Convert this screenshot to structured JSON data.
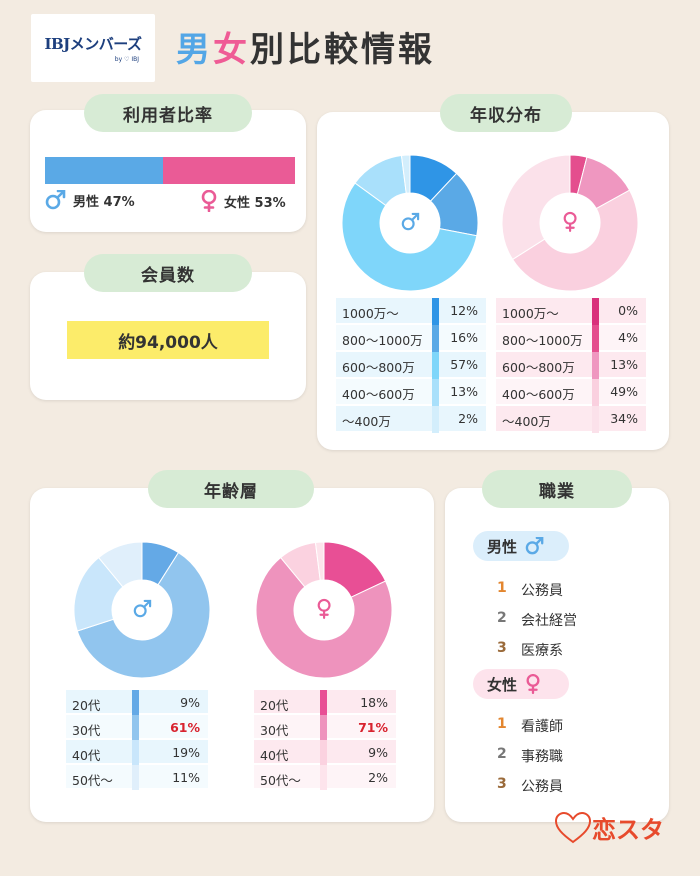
{
  "logo": {
    "main": "IBJメンバーズ",
    "sub": "by ♡ IBJ"
  },
  "title": {
    "part1": "男",
    "part2": "女",
    "part3": "別比較情報"
  },
  "ratio": {
    "heading": "利用者比率",
    "male_label": "男性 47%",
    "male_value": 47,
    "female_label": "女性 53%",
    "female_value": 53
  },
  "members": {
    "heading": "会員数",
    "value": "約94,000人"
  },
  "income": {
    "heading": "年収分布",
    "male": [
      {
        "label": "1000万〜",
        "value": "12%",
        "pct": 12,
        "color": "#2f95e6"
      },
      {
        "label": "800〜1000万",
        "value": "16%",
        "pct": 16,
        "color": "#5aa9e6"
      },
      {
        "label": "600〜800万",
        "value": "57%",
        "pct": 57,
        "color": "#7fd6fa"
      },
      {
        "label": "400〜600万",
        "value": "13%",
        "pct": 13,
        "color": "#a9e0fb"
      },
      {
        "label": "〜400万",
        "value": "2%",
        "pct": 2,
        "color": "#d3eefc"
      }
    ],
    "female": [
      {
        "label": "1000万〜",
        "value": "0%",
        "pct": 0,
        "color": "#d9317c"
      },
      {
        "label": "800〜1000万",
        "value": "4%",
        "pct": 4,
        "color": "#e44e8e"
      },
      {
        "label": "600〜800万",
        "value": "13%",
        "pct": 13,
        "color": "#ef97c0"
      },
      {
        "label": "400〜600万",
        "value": "49%",
        "pct": 49,
        "color": "#fad0df"
      },
      {
        "label": "〜400万",
        "value": "34%",
        "pct": 34,
        "color": "#fbe1ea"
      }
    ]
  },
  "age": {
    "heading": "年齢層",
    "male": [
      {
        "label": "20代",
        "value": "9%",
        "pct": 9,
        "color": "#64a9e6"
      },
      {
        "label": "30代",
        "value": "61%",
        "pct": 61,
        "color": "#91c5ee",
        "highlight": true
      },
      {
        "label": "40代",
        "value": "19%",
        "pct": 19,
        "color": "#c9e6fb"
      },
      {
        "label": "50代〜",
        "value": "11%",
        "pct": 11,
        "color": "#e0effb"
      }
    ],
    "female": [
      {
        "label": "20代",
        "value": "18%",
        "pct": 18,
        "color": "#e84f95"
      },
      {
        "label": "30代",
        "value": "71%",
        "pct": 71,
        "color": "#ee93bd",
        "highlight": true
      },
      {
        "label": "40代",
        "value": "9%",
        "pct": 9,
        "color": "#fbd2e0"
      },
      {
        "label": "50代〜",
        "value": "2%",
        "pct": 2,
        "color": "#fde4ec"
      }
    ]
  },
  "jobs": {
    "heading": "職業",
    "male_heading": "男性",
    "female_heading": "女性",
    "male": [
      {
        "rank": "1",
        "name": "公務員"
      },
      {
        "rank": "2",
        "name": "会社経営"
      },
      {
        "rank": "3",
        "name": "医療系"
      }
    ],
    "female": [
      {
        "rank": "1",
        "name": "看護師"
      },
      {
        "rank": "2",
        "name": "事務職"
      },
      {
        "rank": "3",
        "name": "公務員"
      }
    ]
  },
  "footer_logo": "恋スタ",
  "colors": {
    "male": "#5aa9e6",
    "female": "#ea5b96",
    "highlight": "#d8232f",
    "pill": "#d7ebd5",
    "yellow": "#fcec6a"
  }
}
